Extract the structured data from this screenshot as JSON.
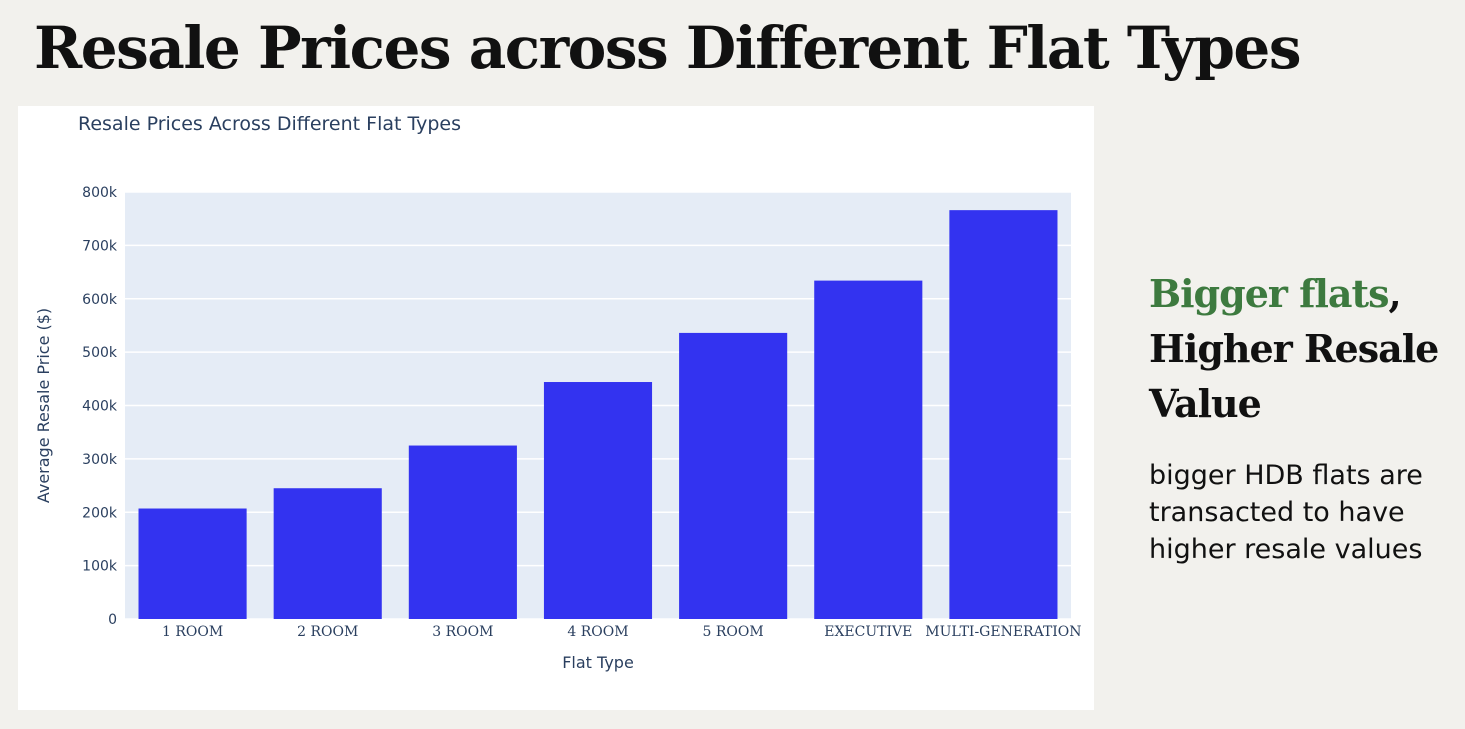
{
  "page": {
    "title": "Resale Prices across Different Flat Types",
    "side": {
      "heading_accent": "Bigger flats",
      "heading_comma": ",",
      "heading_rest": "Higher Resale Value",
      "body": "bigger HDB flats are transacted to have higher resale values"
    },
    "colors": {
      "accent": "#3d7a3f",
      "bar": "#3333f0",
      "plot_bg": "#e5ecf6"
    }
  },
  "chart_data": {
    "type": "bar",
    "title": "Resale Prices Across Different Flat Types",
    "xlabel": "Flat Type",
    "ylabel": "Average Resale Price ($)",
    "categories": [
      "1 ROOM",
      "2 ROOM",
      "3 ROOM",
      "4 ROOM",
      "5 ROOM",
      "EXECUTIVE",
      "MULTI-GENERATION"
    ],
    "values": [
      207000,
      245000,
      325000,
      444000,
      536000,
      634000,
      766000
    ],
    "ylim": [
      0,
      800000
    ],
    "yticks": [
      0,
      100000,
      200000,
      300000,
      400000,
      500000,
      600000,
      700000,
      800000
    ],
    "ytick_labels": [
      "0",
      "100k",
      "200k",
      "300k",
      "400k",
      "500k",
      "600k",
      "700k",
      "800k"
    ],
    "grid": true,
    "bar_color": "#3333f0"
  }
}
